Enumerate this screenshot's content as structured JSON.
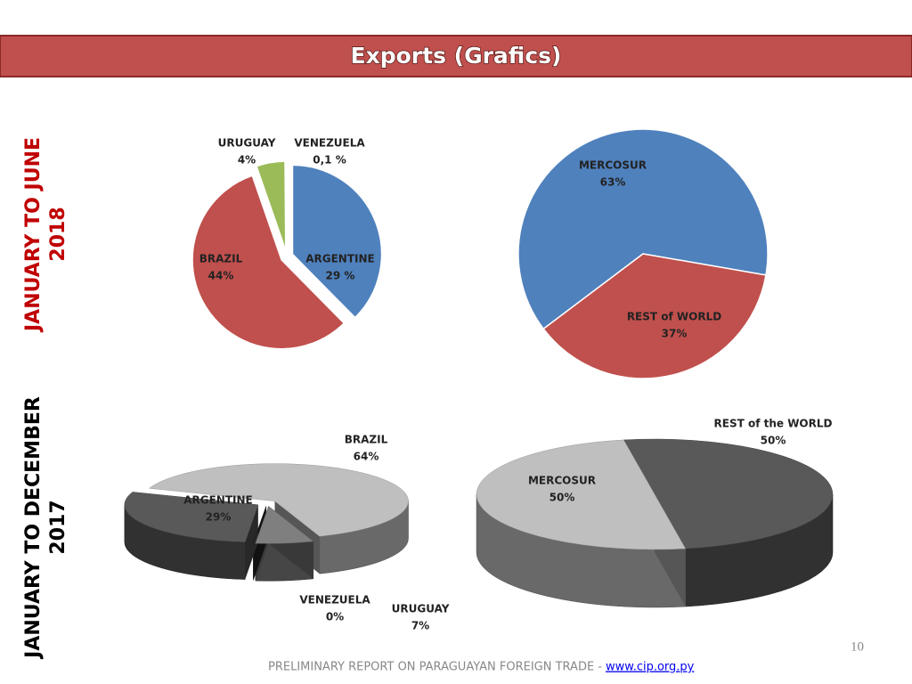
{
  "title": "Exports (Grafics)",
  "periods": [
    [
      "JANUARY TO JUNE",
      "2018"
    ],
    [
      "JANUARY TO DECEMBER",
      "2017"
    ]
  ],
  "page_number": "10",
  "footer": {
    "text": "PRELIMINARY REPORT ON PARAGUAYAN FOREIGN TRADE  -",
    "link": "www.cip.org.py"
  },
  "chart_data": [
    {
      "type": "pie",
      "categories": [
        "ARGENTINE",
        "BRAZIL",
        "URUGUAY",
        "VENEZUELA"
      ],
      "values": [
        29,
        44,
        4,
        0.1
      ],
      "value_labels": [
        "29 %",
        "44%",
        "4%",
        "0,1 %"
      ],
      "colors": [
        "#4f81bd",
        "#c0504d",
        "#9bbb59",
        "#8064a2"
      ],
      "exploded": true
    },
    {
      "type": "pie",
      "categories": [
        "MERCOSUR",
        "REST of WORLD"
      ],
      "values": [
        63,
        37
      ],
      "value_labels": [
        "63%",
        "37%"
      ],
      "colors": [
        "#4f81bd",
        "#c0504d"
      ]
    },
    {
      "type": "pie",
      "three_d": true,
      "exploded": true,
      "categories": [
        "BRAZIL",
        "URUGUAY",
        "VENEZUELA",
        "ARGENTINE"
      ],
      "values": [
        64,
        7,
        0,
        29
      ],
      "value_labels": [
        "64%",
        "7%",
        "0%",
        "29%"
      ],
      "colors": [
        "#bfbfbf",
        "#7f7f7f",
        "#262626",
        "#595959"
      ]
    },
    {
      "type": "pie",
      "three_d": true,
      "categories": [
        "MERCOSUR",
        "REST of the WORLD"
      ],
      "values": [
        50,
        50
      ],
      "value_labels": [
        "50%",
        "50%"
      ],
      "colors": [
        "#595959",
        "#bfbfbf"
      ]
    }
  ]
}
